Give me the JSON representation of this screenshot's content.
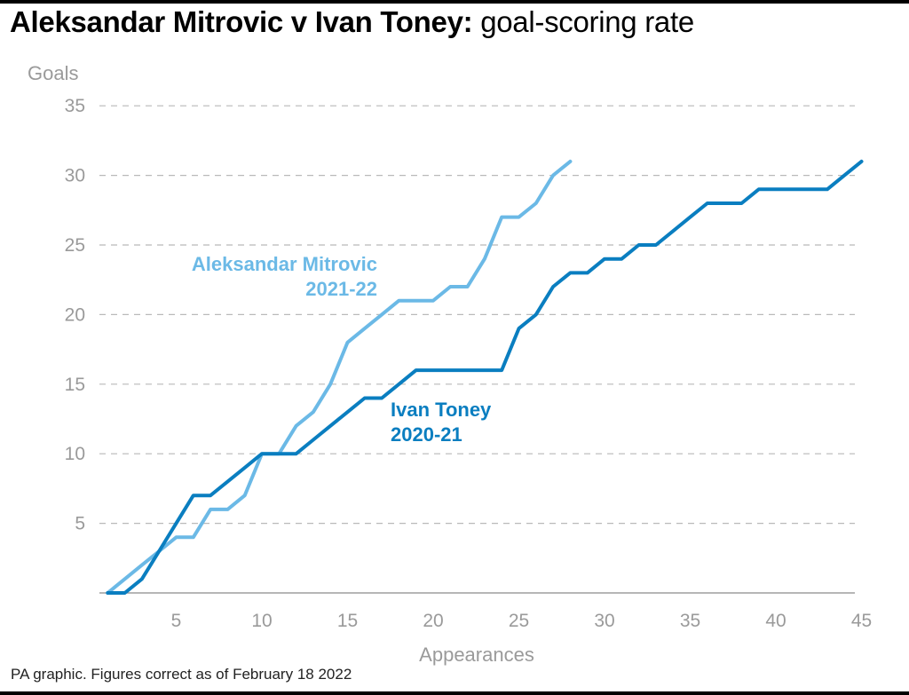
{
  "header": {
    "title_bold": "Aleksandar Mitrovic v Ivan Toney:",
    "title_light": "goal-scoring rate"
  },
  "footer": {
    "source": "PA graphic. Figures correct as of February 18 2022"
  },
  "chart_data": {
    "type": "line",
    "title": "Aleksandar Mitrovic v Ivan Toney: goal-scoring rate",
    "xlabel": "Appearances",
    "ylabel": "Goals",
    "xlim": [
      0,
      45
    ],
    "ylim": [
      0,
      35
    ],
    "x_ticks": [
      5,
      10,
      15,
      20,
      25,
      30,
      35,
      40,
      45
    ],
    "y_ticks": [
      5,
      10,
      15,
      20,
      25,
      30,
      35
    ],
    "grid": "horizontal-dashed",
    "legend": "direct-labels",
    "series": [
      {
        "label_lines": [
          "Aleksandar Mitrovic",
          "2021-22"
        ],
        "color": "#6bb9e6",
        "x": [
          1,
          2,
          3,
          4,
          5,
          6,
          7,
          8,
          9,
          10,
          11,
          12,
          13,
          14,
          15,
          16,
          17,
          18,
          19,
          20,
          21,
          22,
          23,
          24,
          25,
          26,
          27,
          28
        ],
        "values": [
          0,
          1,
          2,
          3,
          4,
          4,
          6,
          6,
          7,
          10,
          10,
          12,
          13,
          15,
          18,
          19,
          20,
          21,
          21,
          21,
          22,
          22,
          24,
          27,
          27,
          28,
          30,
          31
        ]
      },
      {
        "label_lines": [
          "Ivan Toney",
          "2020-21"
        ],
        "color": "#0a7ec0",
        "x": [
          1,
          2,
          3,
          4,
          5,
          6,
          7,
          8,
          9,
          10,
          11,
          12,
          13,
          14,
          15,
          16,
          17,
          18,
          19,
          20,
          21,
          22,
          23,
          24,
          25,
          26,
          27,
          28,
          29,
          30,
          31,
          32,
          33,
          34,
          35,
          36,
          37,
          38,
          39,
          40,
          41,
          42,
          43,
          44,
          45
        ],
        "values": [
          0,
          0,
          1,
          3,
          5,
          7,
          7,
          8,
          9,
          10,
          10,
          10,
          11,
          12,
          13,
          14,
          14,
          15,
          16,
          16,
          16,
          16,
          16,
          16,
          19,
          20,
          22,
          23,
          23,
          24,
          24,
          25,
          25,
          26,
          27,
          28,
          28,
          28,
          29,
          29,
          29,
          29,
          29,
          30,
          31
        ]
      }
    ]
  }
}
